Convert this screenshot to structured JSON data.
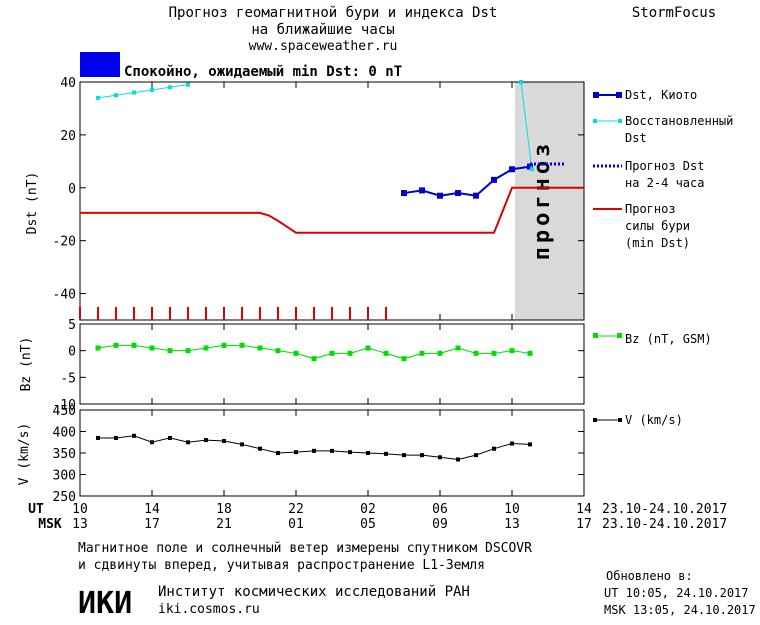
{
  "header": {
    "title_line1": "Прогноз геомагнитной бури и индекса Dst",
    "title_line2": "на ближайшие часы",
    "url": "www.spaceweather.ru",
    "brand": "StormFocus"
  },
  "status": {
    "text": "Спокойно, ожидаемый min Dst: 0 nT",
    "color": "#0000ee"
  },
  "forecast_zone_label": "прогноз",
  "legend": {
    "dst_kyoto": "Dst, Киото",
    "restored_1": "Восстановленный",
    "restored_2": "Dst",
    "forecast_1": "Прогноз Dst",
    "forecast_2": "на 2-4 часа",
    "storm_1": "Прогноз",
    "storm_2": "силы бури",
    "storm_3": "(min Dst)",
    "bz": "Bz (nT, GSM)",
    "v": "V (km/s)"
  },
  "axes": {
    "dst_ylabel": "Dst (nT)",
    "bz_ylabel": "Bz (nT)",
    "v_ylabel": "V (km/s)",
    "ut_label": "UT",
    "msk_label": "MSK",
    "ut_ticks": [
      "10",
      "14",
      "18",
      "22",
      "02",
      "06",
      "10",
      "14"
    ],
    "msk_ticks": [
      "13",
      "17",
      "21",
      "01",
      "05",
      "09",
      "13",
      "17"
    ],
    "ut_range": "23.10-24.10.2017",
    "msk_range": "23.10-24.10.2017"
  },
  "footer": {
    "note_line1": "Магнитное поле и солнечный ветер измерены спутником DSCOVR",
    "note_line2": "и сдвинуты вперед, учитывая распространение L1-Земля",
    "logo": "ИКИ",
    "institute": "Институт космических исследований РАН",
    "site": "iki.cosmos.ru",
    "updated_label": "Обновлено в:",
    "updated_ut": "UT  10:05, 24.10.2017",
    "updated_msk": "MSK 13:05, 24.10.2017"
  },
  "colors": {
    "dst": "#0000cc",
    "restored": "#00e0e0",
    "storm": "#dd0000",
    "bz": "#00dd00",
    "v": "#000000",
    "forecast_zone": "#d9d9d9"
  },
  "chart_data": [
    {
      "type": "line",
      "title": "",
      "x_unit": "hours since 10 UT 23.10.2017",
      "xlim": [
        0,
        28
      ],
      "ylim": [
        -50,
        40
      ],
      "yticks": [
        40,
        20,
        0,
        -20,
        -40
      ],
      "forecast_zone": [
        24,
        28
      ],
      "series": [
        {
          "name": "Dst, Киото",
          "x": [
            18,
            19,
            20,
            21,
            22,
            23,
            24,
            25
          ],
          "y": [
            -2,
            -1,
            -3,
            -2,
            -3,
            3,
            7,
            8
          ]
        },
        {
          "name": "Восстановленный Dst",
          "x": [
            1,
            2,
            3,
            4,
            5,
            6
          ],
          "y": [
            34,
            35,
            36,
            37,
            38,
            39
          ]
        },
        {
          "name": "Восстановленный Dst (tail)",
          "x": [
            24.5,
            25.1
          ],
          "y": [
            40,
            7
          ]
        },
        {
          "name": "Прогноз Dst на 2-4 часа",
          "x": [
            25,
            26,
            27
          ],
          "y": [
            9,
            9,
            9
          ]
        },
        {
          "name": "Прогноз силы бури (min Dst)",
          "x": [
            0,
            2,
            4,
            6,
            8,
            9,
            10,
            10.5,
            11,
            12,
            14,
            16,
            18,
            20,
            22,
            23,
            24,
            28
          ],
          "y": [
            -9.5,
            -9.5,
            -9.5,
            -9.5,
            -9.5,
            -9.5,
            -9.5,
            -10.5,
            -12.5,
            -17,
            -17,
            -17,
            -17,
            -17,
            -17,
            -17,
            0,
            0
          ]
        }
      ],
      "red_tick_marks_x": [
        0,
        1,
        2,
        3,
        4,
        5,
        6,
        7,
        8,
        9,
        10,
        11,
        12,
        13,
        14,
        15,
        16,
        17
      ]
    },
    {
      "type": "line",
      "title": "",
      "ylim": [
        -10,
        5
      ],
      "yticks": [
        5,
        0,
        -5,
        -10
      ],
      "series": [
        {
          "name": "Bz (nT, GSM)",
          "x": [
            1,
            2,
            3,
            4,
            5,
            6,
            7,
            8,
            9,
            10,
            11,
            12,
            13,
            14,
            15,
            16,
            17,
            18,
            19,
            20,
            21,
            22,
            23,
            24,
            25
          ],
          "y": [
            0.5,
            1,
            1,
            0.5,
            0,
            0,
            0.5,
            1,
            1,
            0.5,
            0,
            -0.5,
            -1.5,
            -0.5,
            -0.5,
            0.5,
            -0.5,
            -1.5,
            -0.5,
            -0.5,
            0.5,
            -0.5,
            -0.5,
            0,
            -0.5
          ]
        }
      ]
    },
    {
      "type": "line",
      "title": "",
      "ylim": [
        250,
        450
      ],
      "yticks": [
        450,
        400,
        350,
        300,
        250
      ],
      "series": [
        {
          "name": "V (km/s)",
          "x": [
            1,
            2,
            3,
            4,
            5,
            6,
            7,
            8,
            9,
            10,
            11,
            12,
            13,
            14,
            15,
            16,
            17,
            18,
            19,
            20,
            21,
            22,
            23,
            24,
            25
          ],
          "y": [
            385,
            385,
            390,
            375,
            385,
            375,
            380,
            378,
            370,
            360,
            350,
            352,
            355,
            355,
            352,
            350,
            348,
            345,
            345,
            340,
            335,
            345,
            360,
            372,
            370
          ]
        }
      ]
    }
  ]
}
